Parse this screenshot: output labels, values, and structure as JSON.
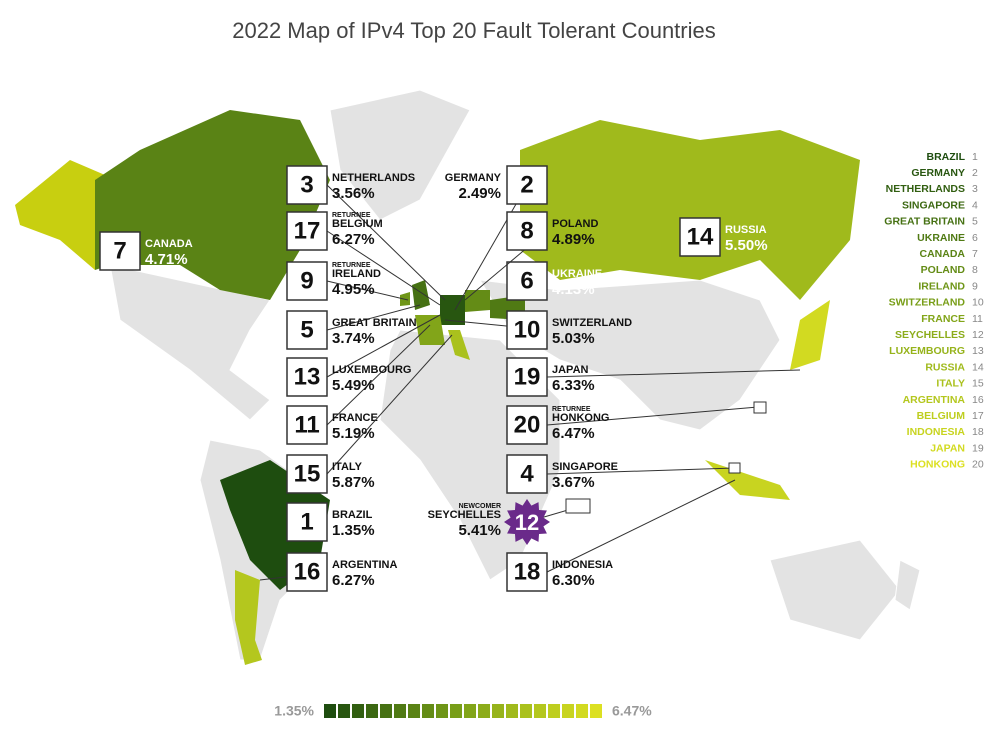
{
  "title": "2022 Map of IPv4 Top 20 Fault Tolerant Countries",
  "countries": [
    {
      "rank": 1,
      "name": "BRAZIL",
      "value": "1.35%",
      "color": "#1e4d0f"
    },
    {
      "rank": 2,
      "name": "GERMANY",
      "value": "2.49%",
      "color": "#285610"
    },
    {
      "rank": 3,
      "name": "NETHERLANDS",
      "value": "3.56%",
      "color": "#325f11"
    },
    {
      "rank": 4,
      "name": "SINGAPORE",
      "value": "3.67%",
      "color": "#3c6812"
    },
    {
      "rank": 5,
      "name": "GREAT BRITAIN",
      "value": "3.74%",
      "color": "#467113"
    },
    {
      "rank": 6,
      "name": "UKRAINE",
      "value": "4.13%",
      "color": "#507a14"
    },
    {
      "rank": 7,
      "name": "CANADA",
      "value": "4.71%",
      "color": "#5a8315"
    },
    {
      "rank": 8,
      "name": "POLAND",
      "value": "4.89%",
      "color": "#648c16"
    },
    {
      "rank": 9,
      "name": "IRELAND",
      "value": "4.95%",
      "color": "#6e9517",
      "tag": "RETURNEE"
    },
    {
      "rank": 10,
      "name": "SWITZERLAND",
      "value": "5.03%",
      "color": "#789e18"
    },
    {
      "rank": 11,
      "name": "FRANCE",
      "value": "5.19%",
      "color": "#82a519"
    },
    {
      "rank": 12,
      "name": "SEYCHELLES",
      "value": "5.41%",
      "color": "#8cac1a",
      "tag": "NEWCOMER"
    },
    {
      "rank": 13,
      "name": "LUXEMBOURG",
      "value": "5.49%",
      "color": "#96b31b"
    },
    {
      "rank": 14,
      "name": "RUSSIA",
      "value": "5.50%",
      "color": "#a0ba1c"
    },
    {
      "rank": 15,
      "name": "ITALY",
      "value": "5.87%",
      "color": "#aac11d"
    },
    {
      "rank": 16,
      "name": "ARGENTINA",
      "value": "6.27%",
      "color": "#b4c71e"
    },
    {
      "rank": 17,
      "name": "BELGIUM",
      "value": "6.27%",
      "color": "#bece1f",
      "tag": "RETURNEE"
    },
    {
      "rank": 18,
      "name": "INDONESIA",
      "value": "6.30%",
      "color": "#c8d420"
    },
    {
      "rank": 19,
      "name": "JAPAN",
      "value": "6.33%",
      "color": "#d2da21"
    },
    {
      "rank": 20,
      "name": "HONKONG",
      "value": "6.47%",
      "color": "#dce022",
      "tag": "RETURNEE"
    }
  ]
}
